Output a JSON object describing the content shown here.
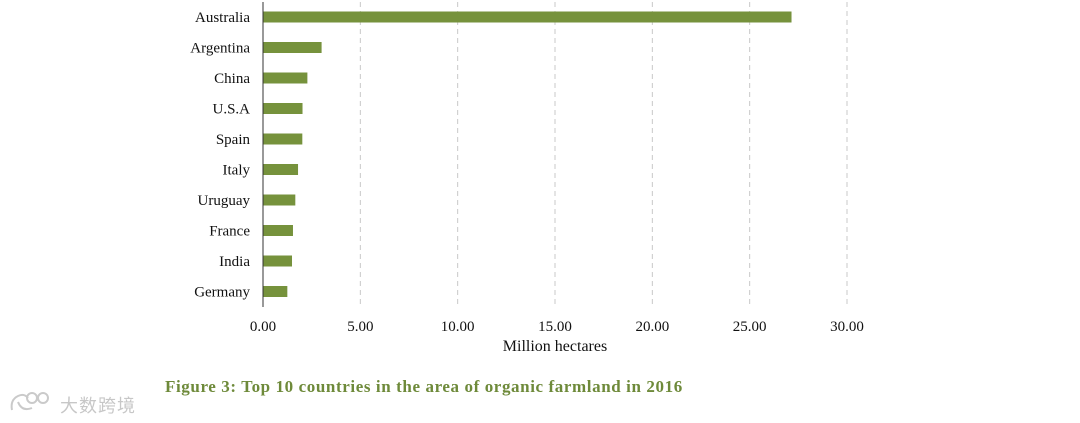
{
  "chart_data": {
    "type": "bar",
    "orientation": "horizontal",
    "categories": [
      "Australia",
      "Argentina",
      "China",
      "U.S.A",
      "Spain",
      "Italy",
      "Uruguay",
      "France",
      "India",
      "Germany"
    ],
    "values": [
      27.15,
      3.01,
      2.28,
      2.03,
      2.02,
      1.8,
      1.66,
      1.54,
      1.49,
      1.25
    ],
    "xlabel": "Million hectares",
    "xlim": [
      0,
      30
    ],
    "xticks": [
      "0.00",
      "5.00",
      "10.00",
      "15.00",
      "20.00",
      "25.00",
      "30.00"
    ],
    "grid": "vertical dashed",
    "bar_color": "#76923c"
  },
  "caption": "Figure 3: Top 10 countries in the area of organic farmland in 2016",
  "watermark": {
    "text": "大数跨境",
    "icon": "brand-logo-icon"
  }
}
